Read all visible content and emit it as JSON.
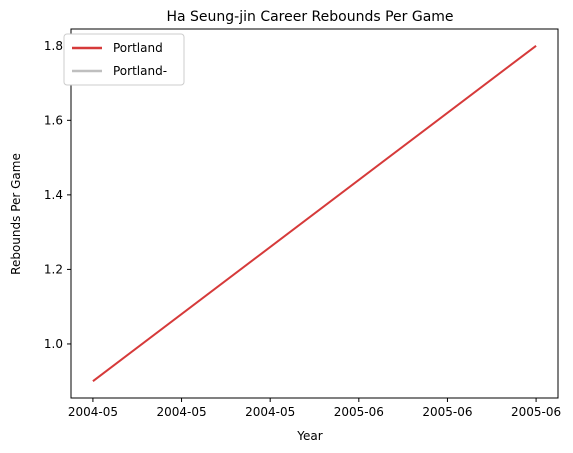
{
  "chart_data": {
    "type": "line",
    "title": "Ha Seung-jin Career Rebounds Per Game",
    "xlabel": "Year",
    "ylabel": "Rebounds Per Game",
    "x": [
      0,
      1
    ],
    "x_tick_labels": [
      "2004-05",
      "2004-05",
      "2004-05",
      "2005-06",
      "2005-06",
      "2005-06"
    ],
    "ylim": [
      0.855,
      1.845
    ],
    "y_ticks": [
      1.0,
      1.2,
      1.4,
      1.6,
      1.8
    ],
    "y_tick_labels": [
      "1.0",
      "1.2",
      "1.4",
      "1.6",
      "1.8"
    ],
    "grid": false,
    "legend_position": "top-left",
    "series": [
      {
        "name": "Portland",
        "x": [
          "2004-05",
          "2005-06"
        ],
        "values": [
          0.9,
          1.8
        ],
        "color": "#d63a3a"
      },
      {
        "name": "Portland-",
        "x": [],
        "values": [],
        "color": "#bfbfbf"
      }
    ]
  }
}
